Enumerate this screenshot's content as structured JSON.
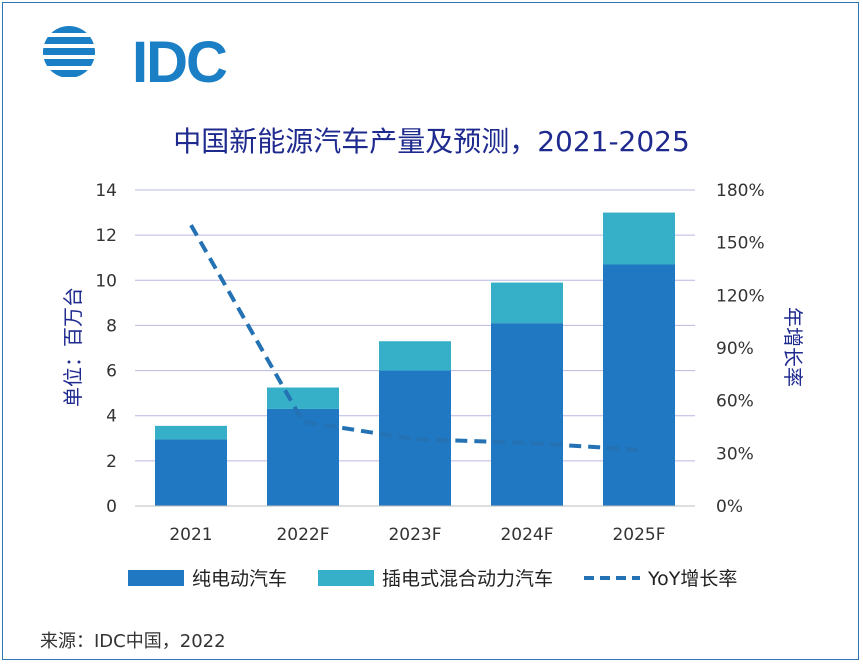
{
  "logo_text": "IDC",
  "chart_data": {
    "type": "bar",
    "stacked": true,
    "title": "中国新能源汽车产量及预测，2021-2025",
    "categories": [
      "2021",
      "2022F",
      "2023F",
      "2024F",
      "2025F"
    ],
    "series": [
      {
        "name": "纯电动汽车",
        "type": "bar",
        "axis": "left",
        "color": "#1f78c1",
        "values": [
          2.95,
          4.3,
          6.0,
          8.1,
          10.7
        ]
      },
      {
        "name": "插电式混合动力汽车",
        "type": "bar",
        "axis": "left",
        "color": "#36b0c8",
        "values": [
          0.6,
          0.95,
          1.3,
          1.8,
          2.3
        ]
      },
      {
        "name": "YoY增长率",
        "type": "line",
        "axis": "right",
        "color": "#2472b3",
        "style": "dashed",
        "values": [
          1.6,
          0.48,
          0.38,
          0.36,
          0.32
        ]
      }
    ],
    "ylabel": "单位：百万台",
    "y2label": "年增长率",
    "ylim": [
      0,
      14
    ],
    "y_ticks": [
      "0",
      "2",
      "4",
      "6",
      "8",
      "10",
      "12",
      "14"
    ],
    "y2lim": [
      0,
      1.8
    ],
    "y2_ticks": [
      "0%",
      "30%",
      "60%",
      "90%",
      "120%",
      "150%",
      "180%"
    ],
    "grid": true,
    "legend_position": "bottom"
  },
  "source": "来源：IDC中国，2022"
}
